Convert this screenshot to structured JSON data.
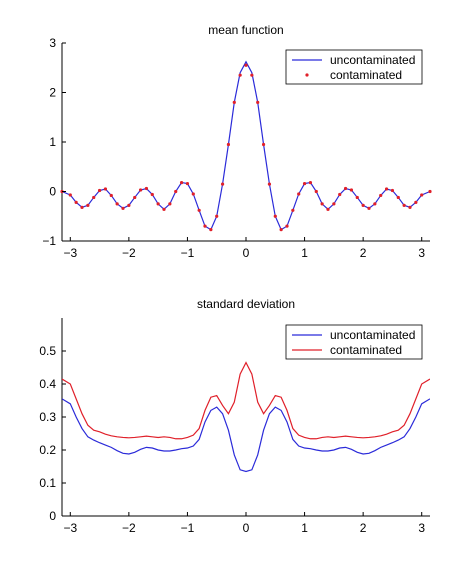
{
  "chart_data": [
    {
      "type": "line",
      "title": "mean function",
      "xlim": [
        -3.1416,
        3.1416
      ],
      "ylim": [
        -1,
        3
      ],
      "xticks": [
        -3,
        -2,
        -1,
        0,
        1,
        2,
        3
      ],
      "yticks": [
        -1,
        0,
        1,
        2,
        3
      ],
      "xtick_labels": [
        "−3",
        "−2",
        "−1",
        "0",
        "1",
        "2",
        "3"
      ],
      "ytick_labels": [
        "−1",
        "0",
        "1",
        "2",
        "3"
      ],
      "legend": "top-right",
      "series": [
        {
          "name": "uncontaminated",
          "style": "line",
          "color": "#2b2bd9",
          "x": [
            -3.1416,
            -3.0,
            -2.9,
            -2.8,
            -2.7,
            -2.6,
            -2.5,
            -2.4,
            -2.3,
            -2.2,
            -2.1,
            -2.0,
            -1.9,
            -1.8,
            -1.7,
            -1.6,
            -1.5,
            -1.4,
            -1.3,
            -1.2,
            -1.1,
            -1.0,
            -0.9,
            -0.8,
            -0.7,
            -0.6,
            -0.5,
            -0.4,
            -0.3,
            -0.2,
            -0.1,
            0.0,
            0.1,
            0.2,
            0.3,
            0.4,
            0.5,
            0.6,
            0.7,
            0.8,
            0.9,
            1.0,
            1.1,
            1.2,
            1.3,
            1.4,
            1.5,
            1.6,
            1.7,
            1.8,
            1.9,
            2.0,
            2.1,
            2.2,
            2.3,
            2.4,
            2.5,
            2.6,
            2.7,
            2.8,
            2.9,
            3.0,
            3.1416
          ],
          "y": [
            0.0,
            -0.07,
            -0.22,
            -0.32,
            -0.28,
            -0.12,
            0.02,
            0.05,
            -0.08,
            -0.25,
            -0.34,
            -0.28,
            -0.12,
            0.03,
            0.06,
            -0.06,
            -0.25,
            -0.36,
            -0.25,
            0.0,
            0.18,
            0.16,
            -0.05,
            -0.38,
            -0.7,
            -0.77,
            -0.5,
            0.15,
            0.95,
            1.8,
            2.4,
            2.62,
            2.4,
            1.8,
            0.95,
            0.15,
            -0.5,
            -0.77,
            -0.7,
            -0.38,
            -0.05,
            0.16,
            0.18,
            0.0,
            -0.25,
            -0.36,
            -0.25,
            -0.06,
            0.06,
            0.03,
            -0.12,
            -0.28,
            -0.34,
            -0.25,
            -0.08,
            0.05,
            0.02,
            -0.12,
            -0.28,
            -0.32,
            -0.22,
            -0.07,
            0.0
          ]
        },
        {
          "name": "contaminated",
          "style": "points",
          "color": "#e0202a",
          "x": [
            -3.1416,
            -3.0,
            -2.9,
            -2.8,
            -2.7,
            -2.6,
            -2.5,
            -2.4,
            -2.3,
            -2.2,
            -2.1,
            -2.0,
            -1.9,
            -1.8,
            -1.7,
            -1.6,
            -1.5,
            -1.4,
            -1.3,
            -1.2,
            -1.1,
            -1.0,
            -0.9,
            -0.8,
            -0.7,
            -0.6,
            -0.5,
            -0.4,
            -0.3,
            -0.2,
            -0.1,
            0.0,
            0.1,
            0.2,
            0.3,
            0.4,
            0.5,
            0.6,
            0.7,
            0.8,
            0.9,
            1.0,
            1.1,
            1.2,
            1.3,
            1.4,
            1.5,
            1.6,
            1.7,
            1.8,
            1.9,
            2.0,
            2.1,
            2.2,
            2.3,
            2.4,
            2.5,
            2.6,
            2.7,
            2.8,
            2.9,
            3.0,
            3.1416
          ],
          "y": [
            0.0,
            -0.07,
            -0.22,
            -0.32,
            -0.28,
            -0.12,
            0.02,
            0.05,
            -0.08,
            -0.25,
            -0.34,
            -0.28,
            -0.12,
            0.03,
            0.06,
            -0.06,
            -0.25,
            -0.36,
            -0.25,
            0.0,
            0.18,
            0.16,
            -0.05,
            -0.38,
            -0.7,
            -0.77,
            -0.5,
            0.15,
            0.95,
            1.8,
            2.35,
            2.55,
            2.35,
            1.8,
            0.95,
            0.15,
            -0.5,
            -0.77,
            -0.7,
            -0.38,
            -0.05,
            0.16,
            0.18,
            0.0,
            -0.25,
            -0.36,
            -0.25,
            -0.06,
            0.06,
            0.03,
            -0.12,
            -0.28,
            -0.34,
            -0.25,
            -0.08,
            0.05,
            0.02,
            -0.12,
            -0.28,
            -0.32,
            -0.22,
            -0.07,
            0.0
          ]
        }
      ]
    },
    {
      "type": "line",
      "title": "standard deviation",
      "xlim": [
        -3.1416,
        3.1416
      ],
      "ylim": [
        0,
        0.6
      ],
      "xticks": [
        -3,
        -2,
        -1,
        0,
        1,
        2,
        3
      ],
      "yticks": [
        0,
        0.1,
        0.2,
        0.3,
        0.4,
        0.5
      ],
      "xtick_labels": [
        "−3",
        "−2",
        "−1",
        "0",
        "1",
        "2",
        "3"
      ],
      "ytick_labels": [
        "0",
        "0.1",
        "0.2",
        "0.3",
        "0.4",
        "0.5"
      ],
      "legend": "top-right",
      "series": [
        {
          "name": "uncontaminated",
          "style": "line",
          "color": "#2b2bd9",
          "x": [
            -3.1416,
            -3.0,
            -2.9,
            -2.8,
            -2.7,
            -2.6,
            -2.5,
            -2.4,
            -2.3,
            -2.2,
            -2.1,
            -2.0,
            -1.9,
            -1.8,
            -1.7,
            -1.6,
            -1.5,
            -1.4,
            -1.3,
            -1.2,
            -1.1,
            -1.0,
            -0.9,
            -0.8,
            -0.7,
            -0.6,
            -0.5,
            -0.4,
            -0.3,
            -0.2,
            -0.1,
            0.0,
            0.1,
            0.2,
            0.3,
            0.4,
            0.5,
            0.6,
            0.7,
            0.8,
            0.9,
            1.0,
            1.1,
            1.2,
            1.3,
            1.4,
            1.5,
            1.6,
            1.7,
            1.8,
            1.9,
            2.0,
            2.1,
            2.2,
            2.3,
            2.4,
            2.5,
            2.6,
            2.7,
            2.8,
            2.9,
            3.0,
            3.1416
          ],
          "y": [
            0.355,
            0.34,
            0.3,
            0.265,
            0.24,
            0.23,
            0.222,
            0.215,
            0.208,
            0.198,
            0.19,
            0.188,
            0.193,
            0.202,
            0.208,
            0.206,
            0.2,
            0.197,
            0.197,
            0.2,
            0.204,
            0.206,
            0.212,
            0.232,
            0.285,
            0.32,
            0.33,
            0.31,
            0.26,
            0.185,
            0.14,
            0.135,
            0.14,
            0.185,
            0.26,
            0.31,
            0.33,
            0.32,
            0.285,
            0.232,
            0.212,
            0.206,
            0.204,
            0.2,
            0.197,
            0.197,
            0.2,
            0.206,
            0.208,
            0.202,
            0.193,
            0.188,
            0.19,
            0.198,
            0.208,
            0.215,
            0.222,
            0.23,
            0.24,
            0.265,
            0.3,
            0.34,
            0.355
          ]
        },
        {
          "name": "contaminated",
          "style": "line",
          "color": "#e0202a",
          "x": [
            -3.1416,
            -3.0,
            -2.9,
            -2.8,
            -2.7,
            -2.6,
            -2.5,
            -2.4,
            -2.3,
            -2.2,
            -2.1,
            -2.0,
            -1.9,
            -1.8,
            -1.7,
            -1.6,
            -1.5,
            -1.4,
            -1.3,
            -1.2,
            -1.1,
            -1.0,
            -0.9,
            -0.8,
            -0.7,
            -0.6,
            -0.5,
            -0.4,
            -0.3,
            -0.2,
            -0.1,
            0.0,
            0.1,
            0.2,
            0.3,
            0.4,
            0.5,
            0.6,
            0.7,
            0.8,
            0.9,
            1.0,
            1.1,
            1.2,
            1.3,
            1.4,
            1.5,
            1.6,
            1.7,
            1.8,
            1.9,
            2.0,
            2.1,
            2.2,
            2.3,
            2.4,
            2.5,
            2.6,
            2.7,
            2.8,
            2.9,
            3.0,
            3.1416
          ],
          "y": [
            0.415,
            0.4,
            0.355,
            0.31,
            0.275,
            0.26,
            0.255,
            0.248,
            0.243,
            0.24,
            0.238,
            0.237,
            0.238,
            0.24,
            0.242,
            0.24,
            0.238,
            0.24,
            0.238,
            0.234,
            0.234,
            0.238,
            0.245,
            0.265,
            0.32,
            0.36,
            0.365,
            0.335,
            0.31,
            0.345,
            0.43,
            0.465,
            0.43,
            0.345,
            0.31,
            0.335,
            0.365,
            0.36,
            0.32,
            0.265,
            0.245,
            0.238,
            0.234,
            0.234,
            0.238,
            0.24,
            0.238,
            0.24,
            0.242,
            0.24,
            0.238,
            0.237,
            0.238,
            0.24,
            0.243,
            0.248,
            0.255,
            0.26,
            0.275,
            0.31,
            0.355,
            0.4,
            0.415
          ]
        }
      ]
    }
  ]
}
